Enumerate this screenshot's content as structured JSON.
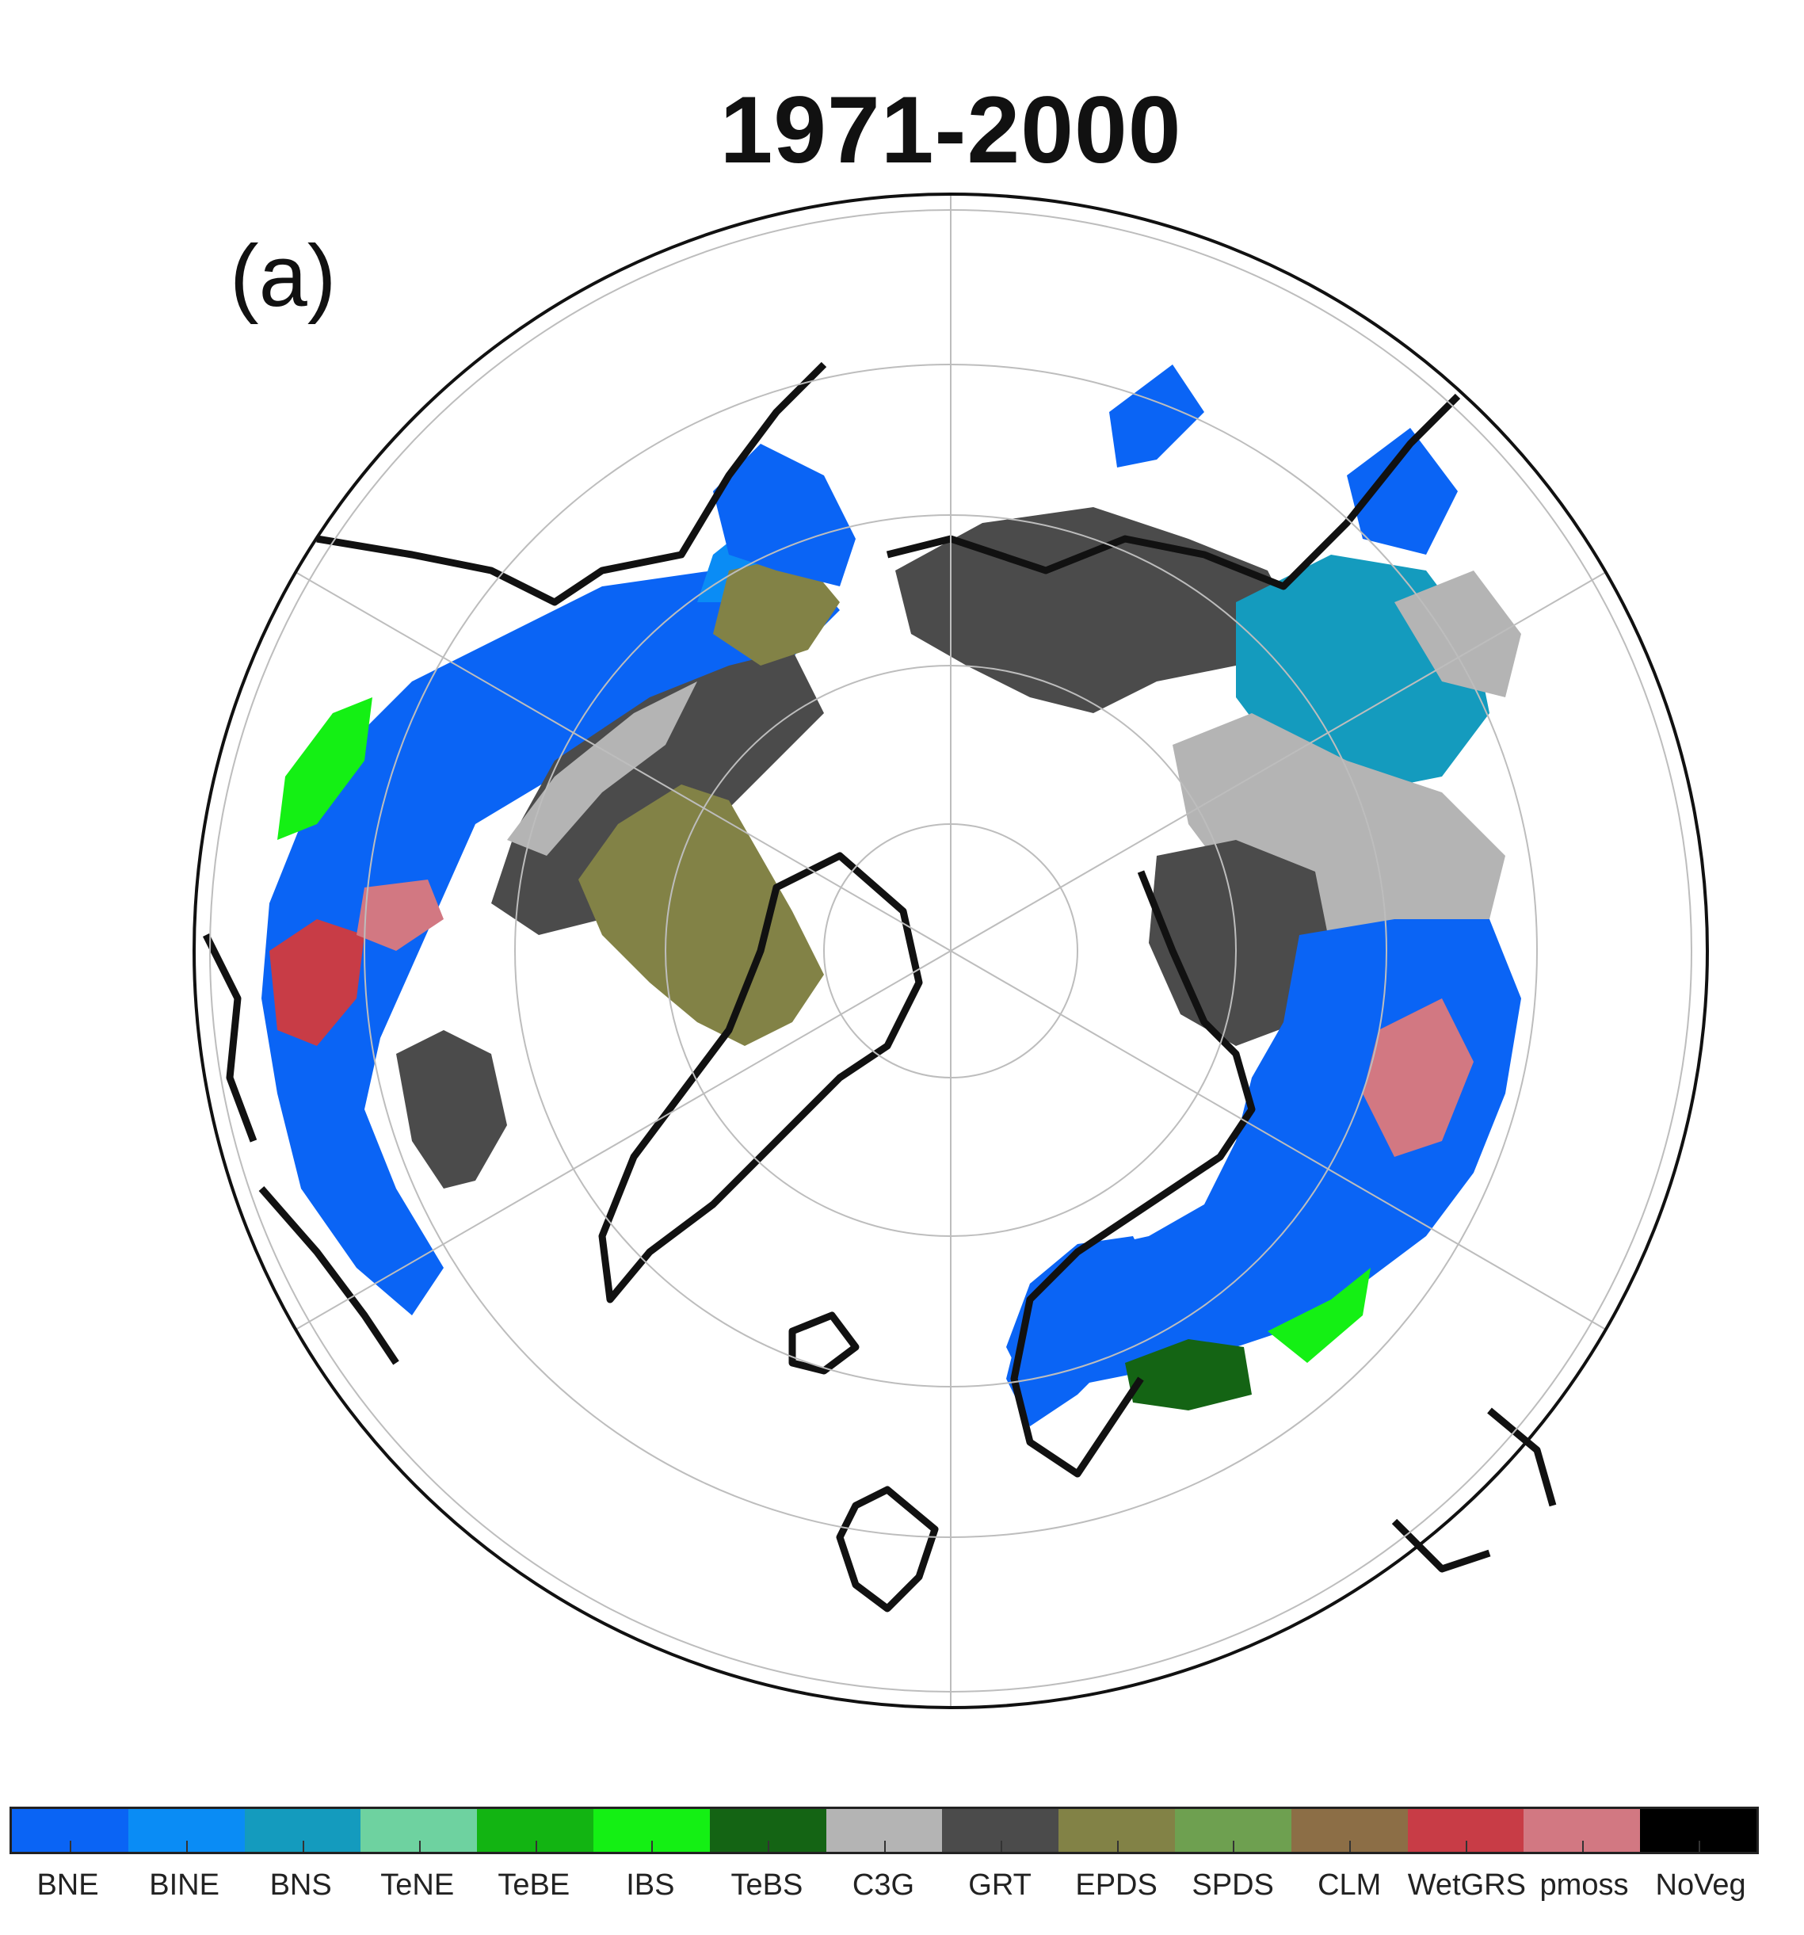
{
  "title": "1971-2000",
  "panel_label": "(a)",
  "legend": [
    {
      "label": "BNE",
      "color": "#0a64f5"
    },
    {
      "label": "BINE",
      "color": "#0a8cf5"
    },
    {
      "label": "BNS",
      "color": "#149bbe"
    },
    {
      "label": "TeNE",
      "color": "#6ed2a0"
    },
    {
      "label": "TeBE",
      "color": "#12b412"
    },
    {
      "label": "IBS",
      "color": "#14f014"
    },
    {
      "label": "TeBS",
      "color": "#146414"
    },
    {
      "label": "C3G",
      "color": "#b4b4b4"
    },
    {
      "label": "GRT",
      "color": "#4b4b4b"
    },
    {
      "label": "EPDS",
      "color": "#828246"
    },
    {
      "label": "SPDS",
      "color": "#6ea050"
    },
    {
      "label": "CLM",
      "color": "#8c6e46"
    },
    {
      "label": "WetGRS",
      "color": "#c83c46"
    },
    {
      "label": "pmoss",
      "color": "#d27882"
    },
    {
      "label": "NoVeg",
      "color": "#000000"
    }
  ],
  "map": {
    "projection": "north polar stereographic",
    "latitude_circles": [
      40,
      50,
      60,
      70,
      80
    ],
    "meridian_spokes": 6
  }
}
